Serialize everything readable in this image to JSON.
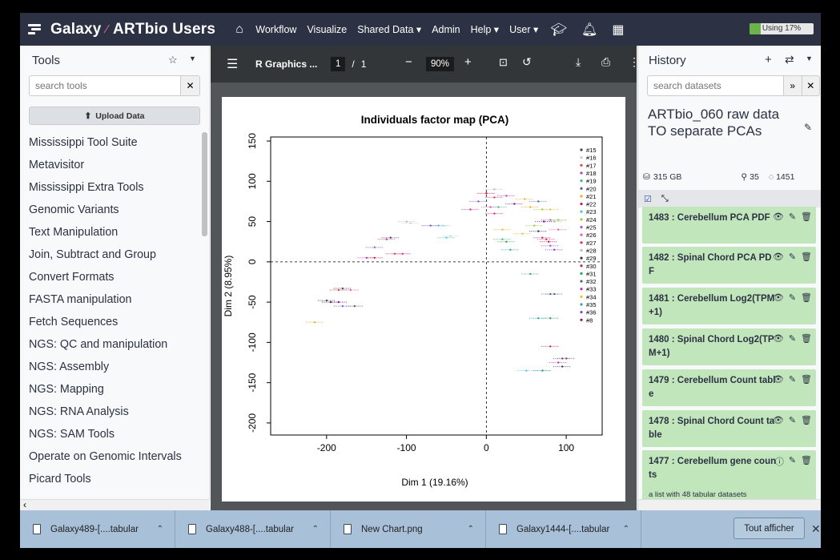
{
  "brand": {
    "title_left": "Galaxy",
    "title_right": "ARTbio Users"
  },
  "nav": {
    "home_icon": "home-icon",
    "items": [
      "Workflow",
      "Visualize",
      "Shared Data ▾",
      "Admin",
      "Help ▾",
      "User ▾"
    ],
    "usage_text": "Using 17%",
    "usage_percent": 17
  },
  "tools": {
    "title": "Tools",
    "search_placeholder": "search tools",
    "upload_label": "Upload Data",
    "items": [
      "Mississippi Tool Suite",
      "Metavisitor",
      "Mississippi Extra Tools",
      "Genomic Variants",
      "Text Manipulation",
      "Join, Subtract and Group",
      "Convert Formats",
      "FASTA manipulation",
      "Fetch Sequences",
      "NGS: QC and manipulation",
      "NGS: Assembly",
      "NGS: Mapping",
      "NGS: RNA Analysis",
      "NGS: SAM Tools",
      "Operate on Genomic Intervals",
      "Picard Tools"
    ]
  },
  "pdf": {
    "title": "R Graphics ...",
    "page_current": "1",
    "page_sep": "/",
    "page_total": "1",
    "zoom": "90%"
  },
  "chart_data": {
    "type": "scatter",
    "title": "Individuals factor map (PCA)",
    "xlabel": "Dim 1 (19.16%)",
    "ylabel": "Dim 2 (8.95%)",
    "xlim": [
      -270,
      145
    ],
    "ylim": [
      -215,
      155
    ],
    "xticks": [
      -200,
      -100,
      0,
      100
    ],
    "yticks": [
      -200,
      -150,
      -100,
      -50,
      0,
      50,
      100,
      150
    ],
    "legend_position": "top-right",
    "series": [
      {
        "name": "#15",
        "color": "#444444",
        "points": [
          [
            -200,
            -48
          ],
          [
            -180,
            -33
          ],
          [
            -120,
            30
          ]
        ]
      },
      {
        "name": "#16",
        "color": "#cccccc",
        "points": [
          [
            -95,
            48
          ],
          [
            -55,
            45
          ],
          [
            -45,
            32
          ]
        ]
      },
      {
        "name": "#17",
        "color": "#d6404e",
        "points": [
          [
            -185,
            -35
          ],
          [
            -115,
            10
          ],
          [
            10,
            80
          ]
        ]
      },
      {
        "name": "#18",
        "color": "#b040c0",
        "points": [
          [
            -150,
            5
          ],
          [
            25,
            82
          ],
          [
            80,
            52
          ]
        ]
      },
      {
        "name": "#19",
        "color": "#2ec27e",
        "points": [
          [
            15,
            68
          ],
          [
            20,
            28
          ],
          [
            90,
            52
          ]
        ]
      },
      {
        "name": "#20",
        "color": "#5a5aa8",
        "points": [
          [
            65,
            75
          ],
          [
            80,
            -40
          ],
          [
            70,
            -135
          ]
        ]
      },
      {
        "name": "#21",
        "color": "#e8b020",
        "points": [
          [
            -215,
            -75
          ],
          [
            48,
            78
          ],
          [
            55,
            68
          ]
        ]
      },
      {
        "name": "#22",
        "color": "#d0103a",
        "points": [
          [
            0,
            85
          ],
          [
            -140,
            5
          ],
          [
            78,
            25
          ]
        ]
      },
      {
        "name": "#23",
        "color": "#40c8e8",
        "points": [
          [
            -60,
            45
          ],
          [
            -50,
            30
          ],
          [
            50,
            -135
          ]
        ]
      },
      {
        "name": "#24",
        "color": "#a8c840",
        "points": [
          [
            60,
            45
          ],
          [
            70,
            65
          ],
          [
            90,
            52
          ]
        ]
      },
      {
        "name": "#25",
        "color": "#8860d8",
        "points": [
          [
            -180,
            -55
          ],
          [
            -140,
            18
          ],
          [
            80,
            20
          ]
        ]
      },
      {
        "name": "#26",
        "color": "#e060b0",
        "points": [
          [
            -170,
            -35
          ],
          [
            5,
            68
          ],
          [
            90,
            40
          ]
        ]
      },
      {
        "name": "#27",
        "color": "#e02080",
        "points": [
          [
            10,
            60
          ],
          [
            -105,
            10
          ],
          [
            75,
            28
          ]
        ]
      },
      {
        "name": "#28",
        "color": "#b8b8b8",
        "points": [
          [
            -100,
            50
          ],
          [
            10,
            90
          ],
          [
            85,
            50
          ]
        ]
      },
      {
        "name": "#29",
        "color": "#303850",
        "points": [
          [
            -195,
            -50
          ],
          [
            65,
            38
          ],
          [
            95,
            -130
          ]
        ]
      },
      {
        "name": "#30",
        "color": "#b83050",
        "points": [
          [
            70,
            30
          ],
          [
            80,
            -105
          ],
          [
            100,
            -120
          ]
        ]
      },
      {
        "name": "#31",
        "color": "#30a060",
        "points": [
          [
            25,
            25
          ],
          [
            55,
            -15
          ],
          [
            80,
            -70
          ]
        ]
      },
      {
        "name": "#32",
        "color": "#506078",
        "points": [
          [
            -165,
            -55
          ],
          [
            85,
            -40
          ],
          [
            95,
            -120
          ]
        ]
      },
      {
        "name": "#33",
        "color": "#c030a8",
        "points": [
          [
            -20,
            65
          ],
          [
            -125,
            28
          ],
          [
            90,
            -125
          ]
        ]
      },
      {
        "name": "#34",
        "color": "#e8c030",
        "points": [
          [
            20,
            40
          ],
          [
            45,
            35
          ],
          [
            80,
            65
          ]
        ]
      },
      {
        "name": "#35",
        "color": "#30a8a0",
        "points": [
          [
            30,
            15
          ],
          [
            65,
            -70
          ],
          [
            70,
            -135
          ]
        ]
      },
      {
        "name": "#36",
        "color": "#8048c8",
        "points": [
          [
            -10,
            75
          ],
          [
            -70,
            45
          ],
          [
            85,
            15
          ]
        ]
      },
      {
        "name": "#8",
        "color": "#801090",
        "points": [
          [
            -185,
            -50
          ],
          [
            35,
            72
          ],
          [
            72,
            50
          ]
        ]
      }
    ]
  },
  "history": {
    "title": "History",
    "search_placeholder": "search datasets",
    "name": "ARTbio_060 raw data TO separate PCAs",
    "size": "315 GB",
    "shown": "35",
    "hidden": "1451",
    "datasets": [
      {
        "label": "1483 : Cerebellum PCA PDF",
        "sub": ""
      },
      {
        "label": "1482 : Spinal Chord PCA PDF",
        "sub": ""
      },
      {
        "label": "1481 : Cerebellum Log2(TPM+1)",
        "sub": ""
      },
      {
        "label": "1480 : Spinal Chord Log2(TPM+1)",
        "sub": ""
      },
      {
        "label": "1479 : Cerebellum Count table",
        "sub": ""
      },
      {
        "label": "1478 : Spinal Chord Count table",
        "sub": ""
      },
      {
        "label": "1477 : Cerebellum gene counts",
        "sub": "a list with 48 tabular datasets"
      }
    ]
  },
  "downloads": {
    "items": [
      "Galaxy489-[....tabular",
      "Galaxy488-[....tabular",
      "New Chart.png",
      "Galaxy1444-[....tabular"
    ],
    "show_all": "Tout afficher"
  }
}
